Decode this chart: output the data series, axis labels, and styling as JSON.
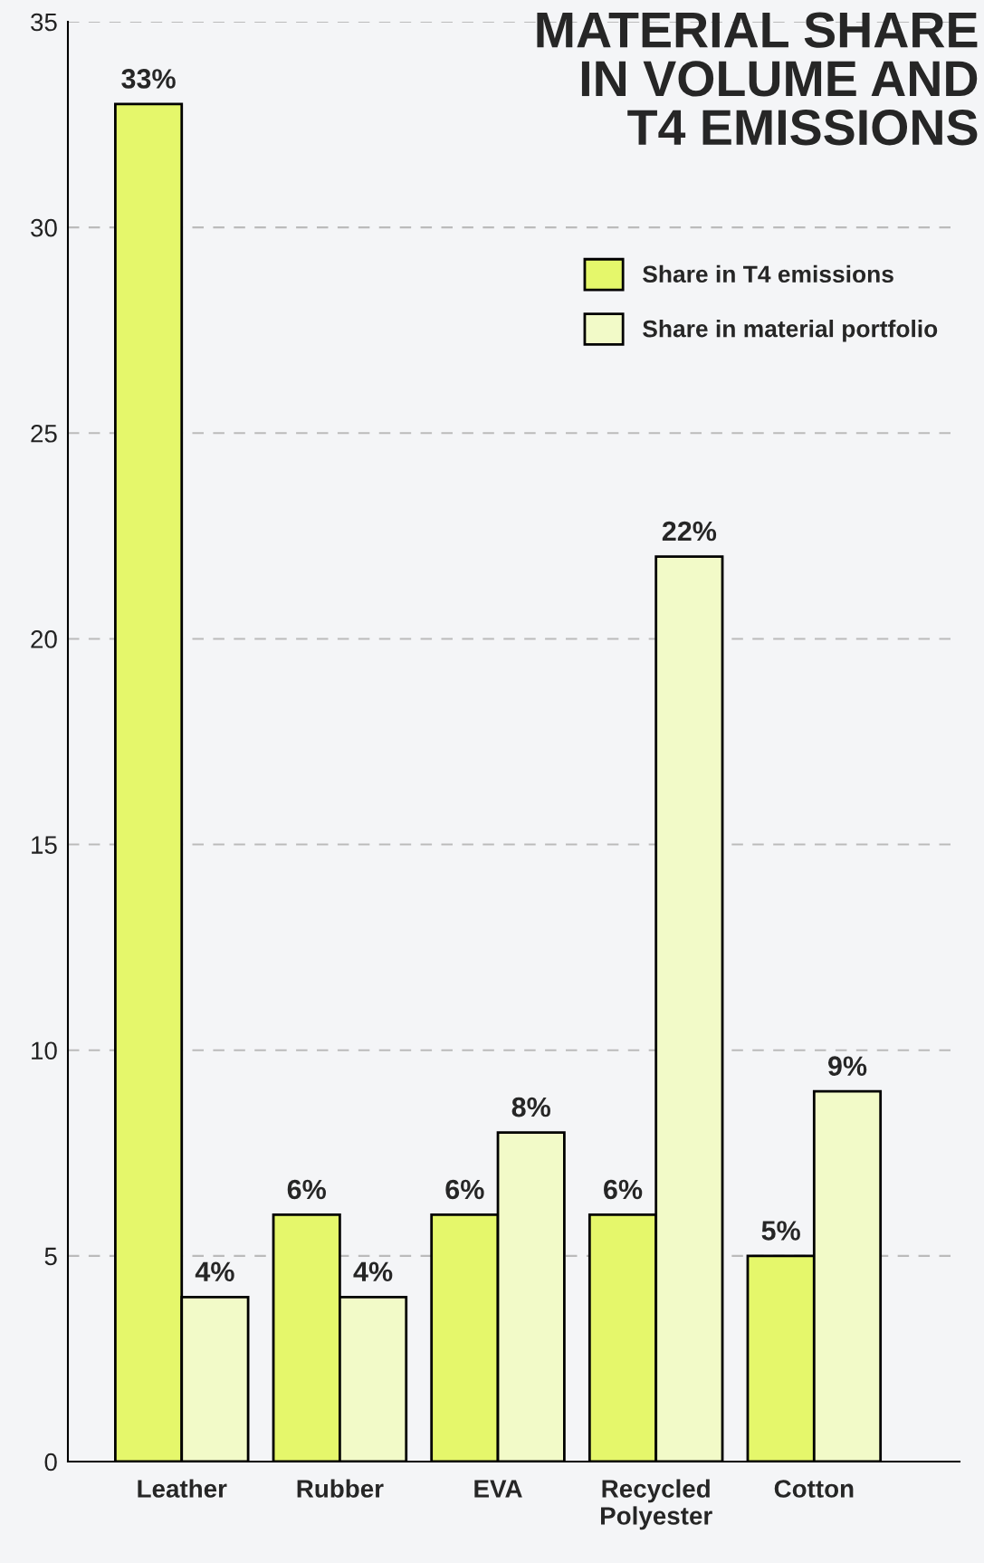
{
  "chart_data": {
    "type": "bar",
    "title": "MATERIAL SHARE\nIN VOLUME AND\nT4 EMISSIONS",
    "categories": [
      "Leather",
      "Rubber",
      "EVA",
      "Recycled\nPolyester",
      "Cotton"
    ],
    "series": [
      {
        "name": "Share in T4 emissions",
        "color": "#e5f76b",
        "values": [
          33,
          6,
          6,
          6,
          5
        ],
        "value_labels": [
          "33%",
          "6%",
          "6%",
          "6%",
          "5%"
        ]
      },
      {
        "name": "Share in material portfolio",
        "color": "#f2fac8",
        "values": [
          4,
          4,
          8,
          22,
          9
        ],
        "value_labels": [
          "4%",
          "4%",
          "8%",
          "22%",
          "9%"
        ]
      }
    ],
    "ylim": [
      0,
      35
    ],
    "yticks": [
      0,
      5,
      10,
      15,
      20,
      25,
      30,
      35
    ],
    "grid": "y",
    "legend": "top right"
  }
}
